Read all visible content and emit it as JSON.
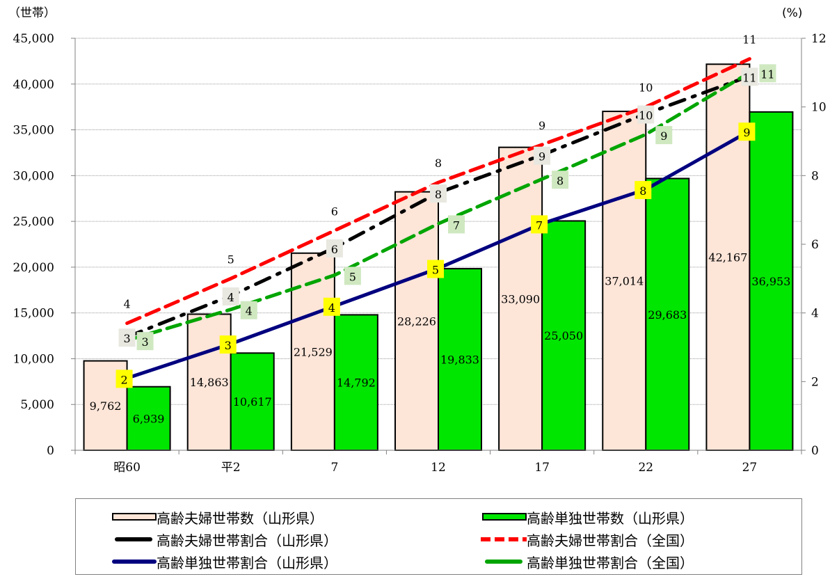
{
  "chart_data": {
    "type": "bar",
    "categories": [
      "昭60",
      "平2",
      "7",
      "12",
      "17",
      "22",
      "27"
    ],
    "left_axis": {
      "unit_label": "（世帯）",
      "ylim": [
        0,
        45000
      ],
      "ticks": [
        "0",
        "5,000",
        "10,000",
        "15,000",
        "20,000",
        "25,000",
        "30,000",
        "35,000",
        "40,000",
        "45,000"
      ],
      "tick_values": [
        0,
        5000,
        10000,
        15000,
        20000,
        25000,
        30000,
        35000,
        40000,
        45000
      ]
    },
    "right_axis": {
      "unit_label": "(%)",
      "ylim": [
        0,
        12
      ],
      "ticks": [
        "0",
        "2",
        "4",
        "6",
        "8",
        "10",
        "12"
      ],
      "tick_values": [
        0,
        2,
        4,
        6,
        8,
        10,
        12
      ]
    },
    "bar_series": [
      {
        "name": "高齢夫婦世帯数（山形県）",
        "color": "#FDE5D8",
        "values": [
          9762,
          14863,
          21529,
          28226,
          33090,
          37014,
          42167
        ],
        "labels": [
          "9,762",
          "14,863",
          "21,529",
          "28,226",
          "33,090",
          "37,014",
          "42,167"
        ]
      },
      {
        "name": "高齢単独世帯数（山形県）",
        "color": "#00E600",
        "values": [
          6939,
          10617,
          14792,
          19833,
          25050,
          29683,
          36953
        ],
        "labels": [
          "6,939",
          "10,617",
          "14,792",
          "19,833",
          "25,050",
          "29,683",
          "36,953"
        ]
      }
    ],
    "line_series": [
      {
        "name": "高齢夫婦世帯割合（山形県）",
        "color": "#000000",
        "style": "dash-dot",
        "values": [
          3.3,
          4.5,
          5.9,
          7.5,
          8.6,
          9.8,
          10.9
        ],
        "labels": [
          "3",
          "4",
          "6",
          "8",
          "9",
          "10",
          "11"
        ],
        "label_bg": "#e8e8e0"
      },
      {
        "name": "高齢夫婦世帯割合（全国）",
        "color": "#FF0000",
        "style": "dash",
        "values": [
          3.7,
          5.0,
          6.4,
          7.8,
          8.9,
          10.0,
          11.4
        ],
        "labels": [
          "4",
          "5",
          "6",
          "8",
          "9",
          "10",
          "11"
        ],
        "label_bg": ""
      },
      {
        "name": "高齢単独世帯割合（山形県）",
        "color": "#00007F",
        "style": "solid",
        "values": [
          2.1,
          3.1,
          4.2,
          5.3,
          6.6,
          7.6,
          9.3
        ],
        "labels": [
          "2",
          "3",
          "4",
          "5",
          "7",
          "8",
          "9"
        ],
        "label_bg": "#ffff00"
      },
      {
        "name": "高齢単独世帯割合（全国）",
        "color": "#00A500",
        "style": "dash",
        "values": [
          3.2,
          4.1,
          5.1,
          6.6,
          7.9,
          9.2,
          11.0
        ],
        "labels": [
          "3",
          "4",
          "5",
          "7",
          "8",
          "9",
          "11"
        ],
        "label_bg": "#cfe8c0"
      }
    ],
    "grid": true,
    "legend_position": "bottom"
  }
}
